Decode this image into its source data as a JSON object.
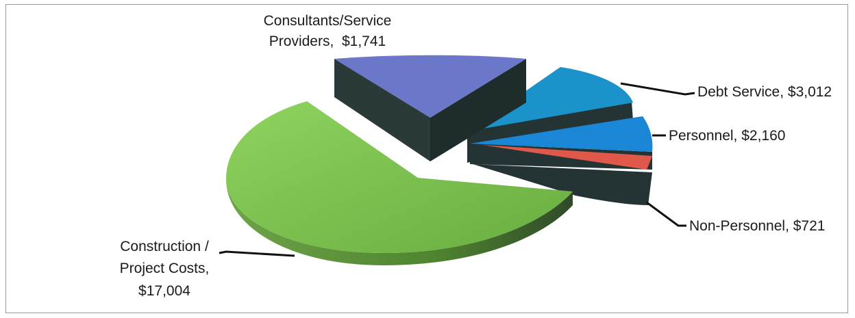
{
  "chart_data": {
    "type": "pie",
    "title": "",
    "slices": [
      {
        "label": "Construction / Project Costs",
        "value": 17004,
        "value_text": "$17,004",
        "color": "#7bc24f",
        "side_color": "#5a8f3a"
      },
      {
        "label": "Consultants/Service Providers",
        "value": 1741,
        "value_text": "$1,741",
        "color": "#6b78c9",
        "side_color": "#2a3a38"
      },
      {
        "label": "Debt Service",
        "value": 3012,
        "value_text": "$3,012",
        "color": "#1b92c9",
        "side_color": "#233232"
      },
      {
        "label": "Personnel",
        "value": 2160,
        "value_text": "$2,160",
        "color": "#1a86d6",
        "side_color": "#233232"
      },
      {
        "label": "Non-Personnel",
        "value": 721,
        "value_text": "$721",
        "color": "#e0584a",
        "side_color": "#233232"
      }
    ],
    "data_labels": {
      "construction": [
        "Construction /",
        "Project Costs,",
        "$17,004"
      ],
      "consultants": [
        "Consultants/Service",
        "Providers,  $1,741"
      ],
      "debt": "Debt Service, $3,012",
      "personnel": "Personnel, $2,160",
      "nonpersonnel": "Non-Personnel, $721"
    },
    "legend": "none",
    "style": "3d-exploded"
  }
}
